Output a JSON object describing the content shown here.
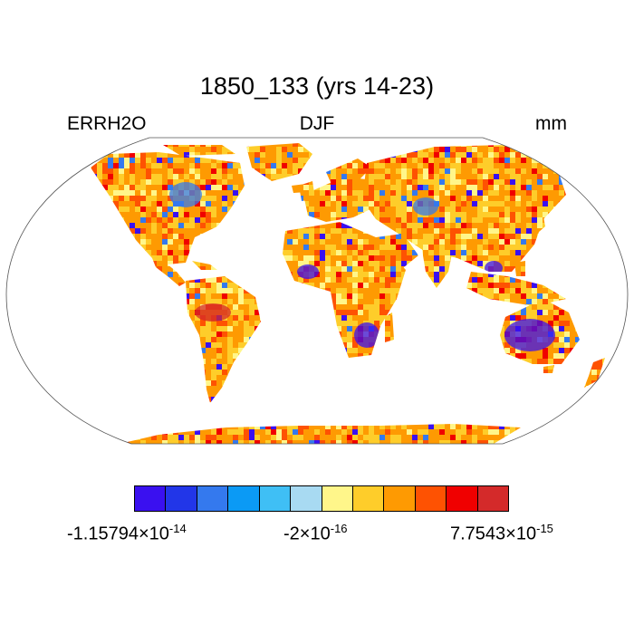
{
  "title": "1850_133 (yrs 14-23)",
  "left_label": "ERRH2O",
  "center_label": "DJF",
  "right_label": "mm",
  "colorbar": {
    "colors": [
      "#3a10f0",
      "#2236e8",
      "#3479ee",
      "#0b9af5",
      "#3fbff5",
      "#a8daf2",
      "#fff68a",
      "#fecd2a",
      "#fe9a02",
      "#fe5202",
      "#f00000",
      "#d42a2a"
    ],
    "labels": [
      {
        "mantissa": "-1.15794",
        "times": "×10",
        "exp": "-14"
      },
      {
        "mantissa": "-2",
        "times": "×10",
        "exp": "-16"
      },
      {
        "mantissa": "7.7543",
        "times": "×10",
        "exp": "-15"
      }
    ]
  },
  "map": {
    "projection": "Robinson",
    "field_colors": [
      "#fe9a02",
      "#fecd2a",
      "#fe5202",
      "#fff68a",
      "#f00000",
      "#3479ee",
      "#3a10f0"
    ]
  }
}
